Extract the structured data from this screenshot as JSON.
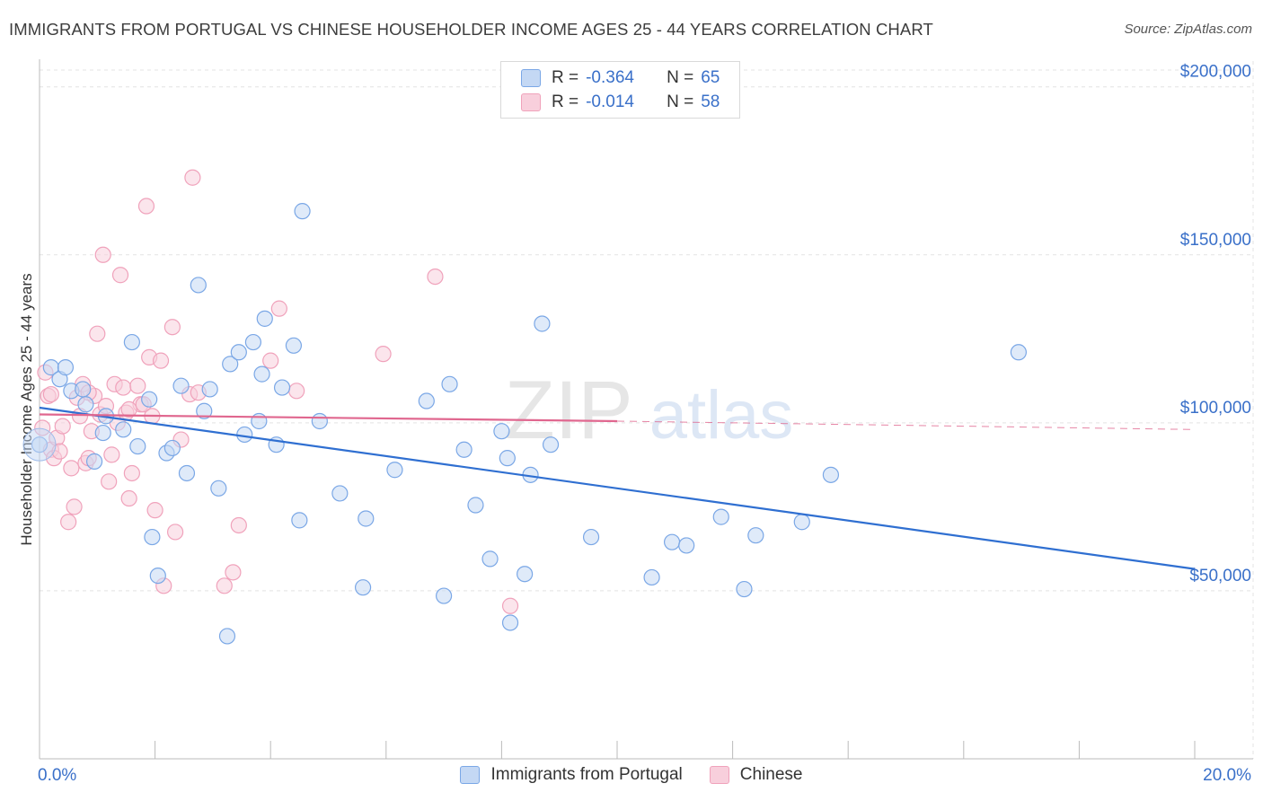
{
  "header": {
    "title": "IMMIGRANTS FROM PORTUGAL VS CHINESE HOUSEHOLDER INCOME AGES 25 - 44 YEARS CORRELATION CHART",
    "source": "Source: ZipAtlas.com"
  },
  "watermark": {
    "zip": "ZIP",
    "atlas": "atlas"
  },
  "legend": {
    "rows": [
      {
        "r_label": "R =",
        "r_value": "-0.364",
        "n_label": "N =",
        "n_value": "65"
      },
      {
        "r_label": "R =",
        "r_value": "-0.014",
        "n_label": "N =",
        "n_value": "58"
      }
    ]
  },
  "chart_data": {
    "type": "scatter",
    "title": "IMMIGRANTS FROM PORTUGAL VS CHINESE HOUSEHOLDER INCOME AGES 25 - 44 YEARS CORRELATION CHART",
    "xlabel": "",
    "ylabel": "Householder Income Ages 25 - 44 years",
    "xlim": [
      0,
      20
    ],
    "ylim": [
      0,
      205000
    ],
    "x_tick_labels": [
      "0.0%",
      "20.0%"
    ],
    "y_ticks": [
      {
        "value": 50000,
        "label": "$50,000"
      },
      {
        "value": 100000,
        "label": "$100,000"
      },
      {
        "value": 150000,
        "label": "$150,000"
      },
      {
        "value": 200000,
        "label": "$200,000"
      }
    ],
    "grid": true,
    "legend_position": "bottom",
    "series": [
      {
        "name": "Immigrants from Portugal",
        "color": "#7aa7e6",
        "fill": "#c4d8f4",
        "trend": {
          "x0": 0,
          "y0": 104500,
          "x1": 20,
          "y1": 56500,
          "color": "#2f6fd1"
        },
        "points": [
          [
            0.0,
            93500
          ],
          [
            0.2,
            116500
          ],
          [
            0.35,
            113000
          ],
          [
            0.45,
            116500
          ],
          [
            0.55,
            109500
          ],
          [
            0.75,
            110000
          ],
          [
            0.8,
            105500
          ],
          [
            0.95,
            88500
          ],
          [
            1.1,
            97000
          ],
          [
            1.15,
            102000
          ],
          [
            1.45,
            98000
          ],
          [
            1.6,
            124000
          ],
          [
            1.7,
            93000
          ],
          [
            1.9,
            107000
          ],
          [
            1.95,
            66000
          ],
          [
            2.05,
            54500
          ],
          [
            2.2,
            91000
          ],
          [
            2.3,
            92500
          ],
          [
            2.45,
            111000
          ],
          [
            2.55,
            85000
          ],
          [
            2.75,
            141000
          ],
          [
            2.85,
            103500
          ],
          [
            2.95,
            110000
          ],
          [
            3.1,
            80500
          ],
          [
            3.25,
            36500
          ],
          [
            3.3,
            117500
          ],
          [
            3.45,
            121000
          ],
          [
            3.55,
            96500
          ],
          [
            3.7,
            124000
          ],
          [
            3.85,
            114500
          ],
          [
            3.9,
            131000
          ],
          [
            4.1,
            93500
          ],
          [
            4.2,
            110500
          ],
          [
            4.4,
            123000
          ],
          [
            4.5,
            71000
          ],
          [
            4.55,
            163000
          ],
          [
            4.85,
            100500
          ],
          [
            5.2,
            79000
          ],
          [
            5.6,
            51000
          ],
          [
            5.65,
            71500
          ],
          [
            6.15,
            86000
          ],
          [
            6.7,
            106500
          ],
          [
            7.0,
            48500
          ],
          [
            7.1,
            111500
          ],
          [
            7.35,
            92000
          ],
          [
            7.55,
            75500
          ],
          [
            7.8,
            59500
          ],
          [
            8.0,
            97500
          ],
          [
            8.1,
            89500
          ],
          [
            8.15,
            40500
          ],
          [
            8.4,
            55000
          ],
          [
            8.5,
            84500
          ],
          [
            8.7,
            129500
          ],
          [
            8.85,
            93500
          ],
          [
            9.55,
            66000
          ],
          [
            10.6,
            54000
          ],
          [
            10.95,
            64500
          ],
          [
            11.2,
            63500
          ],
          [
            11.8,
            72000
          ],
          [
            12.2,
            50500
          ],
          [
            12.4,
            66500
          ],
          [
            13.2,
            70500
          ],
          [
            13.7,
            84500
          ],
          [
            16.95,
            121000
          ],
          [
            3.8,
            100500
          ]
        ]
      },
      {
        "name": "Chinese",
        "color": "#f0a2bb",
        "fill": "#f8cfdc",
        "trend": {
          "x0": 0,
          "y0": 102500,
          "x1": 10,
          "y1": 100500,
          "dash_to_x": 20,
          "dash_to_y": 98000,
          "color": "#e0678f"
        },
        "points": [
          [
            0.05,
            98500
          ],
          [
            0.1,
            115000
          ],
          [
            0.15,
            108000
          ],
          [
            0.2,
            92000
          ],
          [
            0.25,
            89500
          ],
          [
            0.3,
            95500
          ],
          [
            0.35,
            91500
          ],
          [
            0.4,
            99000
          ],
          [
            0.5,
            70500
          ],
          [
            0.55,
            86500
          ],
          [
            0.6,
            75000
          ],
          [
            0.65,
            107500
          ],
          [
            0.7,
            102000
          ],
          [
            0.75,
            111500
          ],
          [
            0.8,
            88000
          ],
          [
            0.85,
            89500
          ],
          [
            0.9,
            97500
          ],
          [
            0.95,
            108000
          ],
          [
            1.0,
            126500
          ],
          [
            1.05,
            102500
          ],
          [
            1.1,
            150000
          ],
          [
            1.15,
            105000
          ],
          [
            1.2,
            82500
          ],
          [
            1.25,
            90500
          ],
          [
            1.3,
            111500
          ],
          [
            1.35,
            100000
          ],
          [
            1.4,
            144000
          ],
          [
            1.45,
            110500
          ],
          [
            1.5,
            103000
          ],
          [
            1.55,
            77500
          ],
          [
            1.6,
            85000
          ],
          [
            1.7,
            111000
          ],
          [
            1.75,
            105500
          ],
          [
            1.8,
            105500
          ],
          [
            1.85,
            164500
          ],
          [
            1.9,
            119500
          ],
          [
            1.95,
            102000
          ],
          [
            2.0,
            74000
          ],
          [
            2.1,
            118500
          ],
          [
            2.15,
            51500
          ],
          [
            2.3,
            128500
          ],
          [
            2.35,
            67500
          ],
          [
            2.45,
            95000
          ],
          [
            2.6,
            108500
          ],
          [
            2.65,
            173000
          ],
          [
            2.75,
            109000
          ],
          [
            3.2,
            51500
          ],
          [
            3.35,
            55500
          ],
          [
            3.45,
            69500
          ],
          [
            4.0,
            118500
          ],
          [
            4.15,
            134000
          ],
          [
            4.45,
            109500
          ],
          [
            5.95,
            120500
          ],
          [
            6.85,
            143500
          ],
          [
            8.15,
            45500
          ],
          [
            0.2,
            108500
          ],
          [
            1.55,
            104000
          ],
          [
            0.85,
            109000
          ]
        ]
      }
    ]
  }
}
